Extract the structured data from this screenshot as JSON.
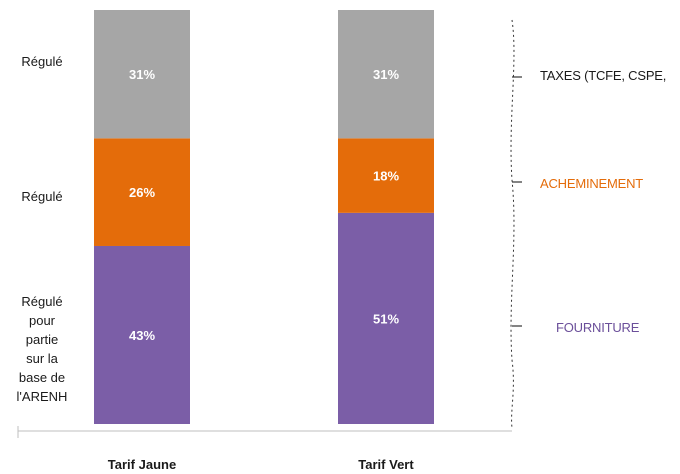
{
  "chart_data": {
    "type": "bar",
    "stacked": true,
    "normalized": true,
    "categories": [
      "Tarif Jaune",
      "Tarif Vert"
    ],
    "series": [
      {
        "name": "FOURNITURE",
        "values": [
          43,
          51
        ],
        "labels": [
          "43%",
          "51%"
        ],
        "color": "#7b5ea7"
      },
      {
        "name": "ACHEMINEMENT",
        "values": [
          26,
          18
        ],
        "labels": [
          "26%",
          "18%"
        ],
        "color": "#e46c0a"
      },
      {
        "name": "TAXES (TCFE, CSPE,",
        "values": [
          31,
          31
        ],
        "labels": [
          "31%",
          "31%"
        ],
        "color": "#a6a6a6"
      }
    ],
    "ylim": [
      0,
      100
    ],
    "grid": false,
    "legend": "right",
    "side_labels": [
      {
        "segment": "TAXES (TCFE, CSPE,",
        "text": "Régulé"
      },
      {
        "segment": "ACHEMINEMENT",
        "text": "Régulé"
      },
      {
        "segment": "FOURNITURE",
        "lines": [
          "Régulé",
          "pour",
          "partie",
          "sur la",
          "base de",
          "l'ARENH"
        ]
      }
    ],
    "legend_colors": {
      "TAXES (TCFE, CSPE,": "#1a1a1a",
      "ACHEMINEMENT": "#e46c0a",
      "FOURNITURE": "#6b4f9a"
    }
  }
}
